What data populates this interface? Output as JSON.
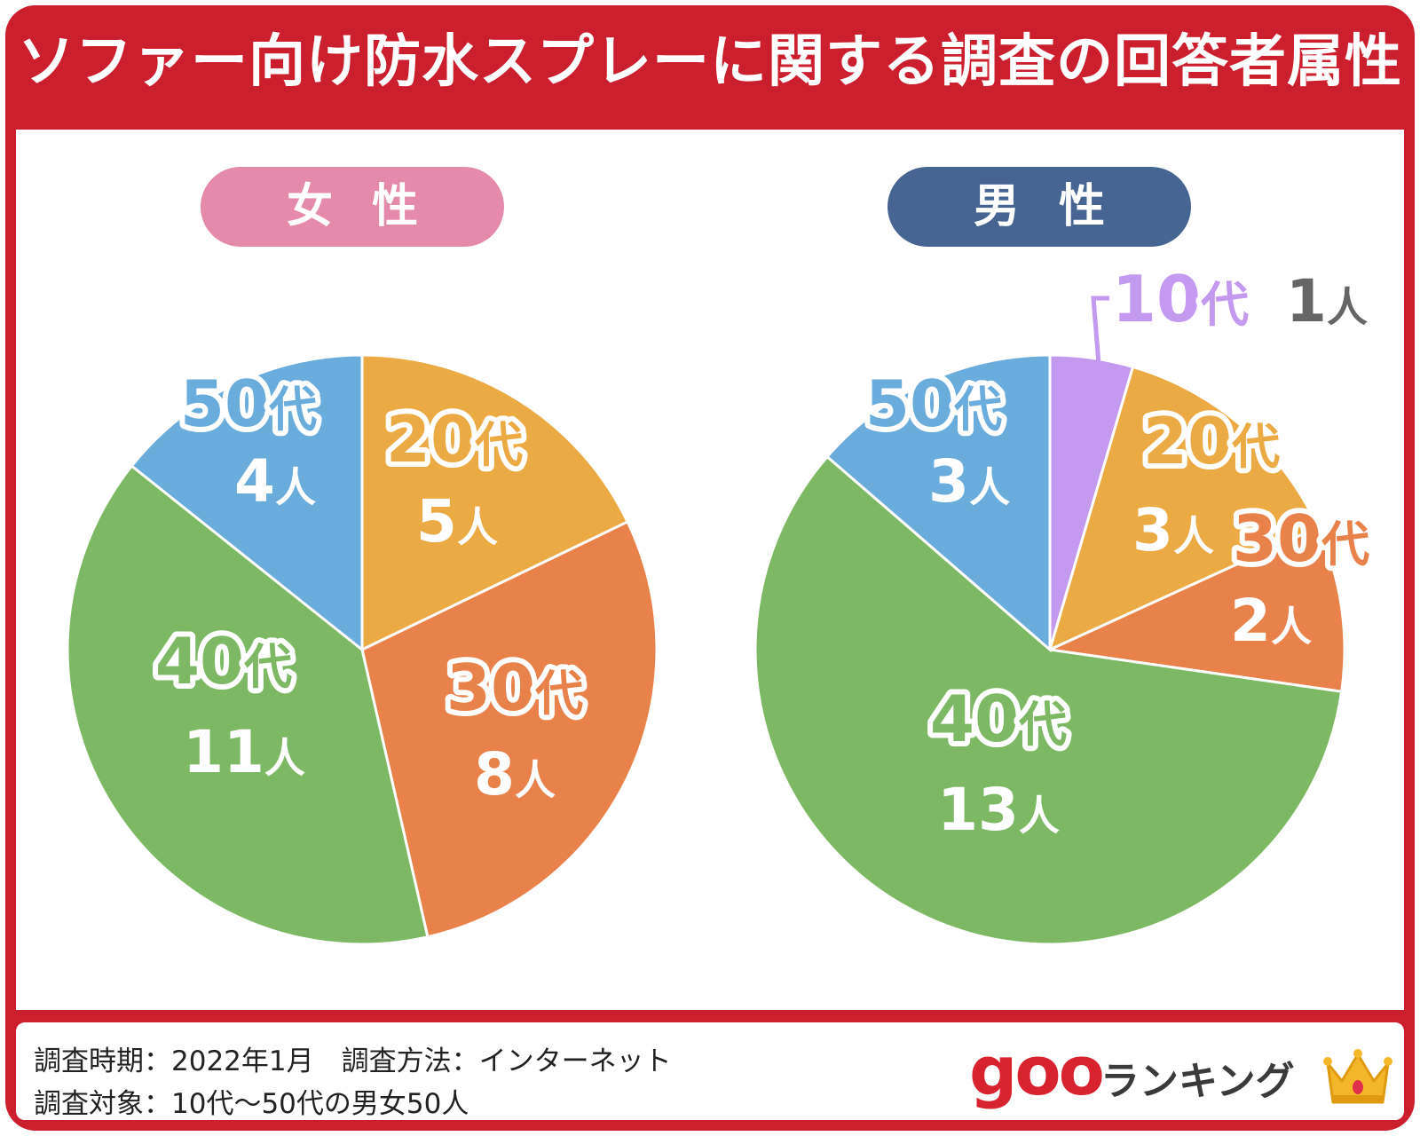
{
  "title": "ソファー向け防水スプレーに関する調査の回答者属性",
  "female_label": "女性",
  "male_label": "男性",
  "unit_age": "代",
  "unit_count": "人",
  "footer": {
    "line1": "調査時期：2022年1月　調査方法：インターネット",
    "line2": "調査対象：10代～50代の男女50人"
  },
  "brand": {
    "goo": "goo",
    "rank": "ランキング"
  },
  "colors": {
    "frame": "#cc1f2e",
    "female_pill": "#e58aab",
    "male_pill": "#476593",
    "10s": "#c49af0",
    "20s": "#ecaa45",
    "30s": "#e8824a",
    "40s": "#7db964",
    "50s": "#6aacdb",
    "count_gray": "#666666"
  },
  "chart_data": [
    {
      "type": "pie",
      "title": "女性",
      "categories": [
        "20代",
        "30代",
        "40代",
        "50代"
      ],
      "values": [
        5,
        8,
        11,
        4
      ],
      "label_age": [
        "20",
        "30",
        "40",
        "50"
      ],
      "label_count": [
        "5",
        "8",
        "11",
        "4"
      ]
    },
    {
      "type": "pie",
      "title": "男性",
      "categories": [
        "10代",
        "20代",
        "30代",
        "40代",
        "50代"
      ],
      "values": [
        1,
        3,
        2,
        13,
        3
      ],
      "label_age": [
        "10",
        "20",
        "30",
        "40",
        "50"
      ],
      "label_count": [
        "1",
        "3",
        "2",
        "13",
        "3"
      ]
    }
  ]
}
